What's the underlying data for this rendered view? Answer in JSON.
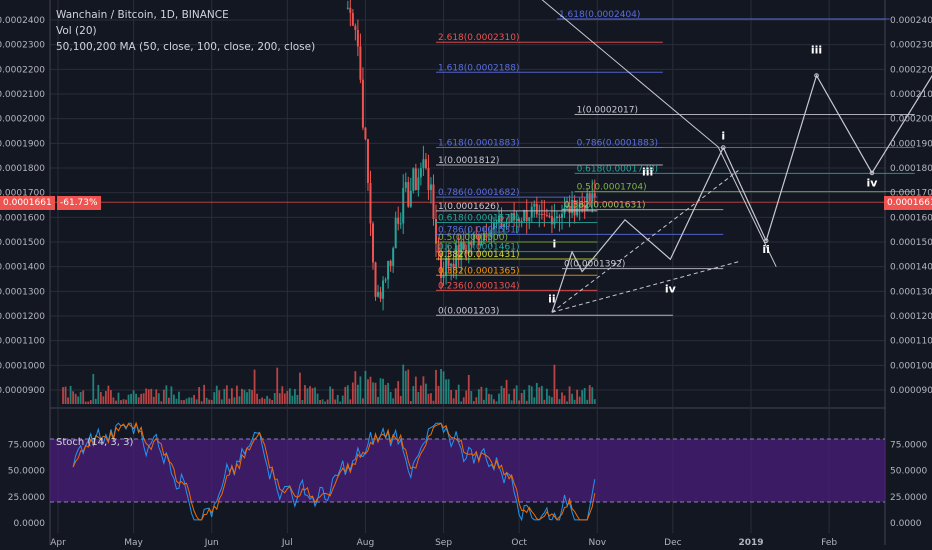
{
  "header": {
    "title": "Wanchain / Bitcoin, 1D, BINANCE",
    "vol": "Vol (20)",
    "ma": "50,100,200 MA (50, close, 100, close, 200, close)"
  },
  "price_badge_left": "0.0001661",
  "pct_badge": "-61.73%",
  "price_badge_right": "0.0001661",
  "stoch_label": "Stoch (14, 3, 3)",
  "colors": {
    "bg": "#131722",
    "up": "#26a69a",
    "down": "#ef5350",
    "grid": "#2a2e39",
    "fib_blue": "#5b6ee1",
    "fib_red": "#ef5350",
    "wave": "#c8c8d0",
    "stoch_fill": "#4a1e7a"
  },
  "chart_data": {
    "type": "candlestick",
    "title": "Wanchain / Bitcoin, 1D, BINANCE",
    "y_ticks": [
      "0.0002400",
      "0.0002300",
      "0.0002200",
      "0.0002100",
      "0.0002000",
      "0.0001900",
      "0.0001800",
      "0.0001700",
      "0.0001600",
      "0.0001500",
      "0.0001400",
      "0.0001300",
      "0.0001200",
      "0.0001100",
      "0.0001000",
      "0.0000900"
    ],
    "y_range": [
      8.3e-05,
      0.000246
    ],
    "x_ticks": [
      "Apr",
      "May",
      "Jun",
      "Jul",
      "Aug",
      "Sep",
      "Oct",
      "Nov",
      "Dec",
      "2019",
      "Feb"
    ],
    "fib_levels": [
      {
        "label": "1.618(0.0002404)",
        "value": 0.0002404,
        "color": "#5b6ee1"
      },
      {
        "label": "2.618(0.0002310)",
        "value": 0.000231,
        "color": "#ef5350"
      },
      {
        "label": "1.618(0.0002188)",
        "value": 0.0002188,
        "color": "#5b6ee1"
      },
      {
        "label": "1(0.0002017)",
        "value": 0.0002017,
        "color": "#c8c8d0"
      },
      {
        "label": "0.786(0.0001883)",
        "value": 0.0001883,
        "color": "#5b6ee1"
      },
      {
        "label": "1.618(0.0001883)",
        "value": 0.0001883,
        "color": "#5b6ee1"
      },
      {
        "label": "1(0.0001812)",
        "value": 0.0001812,
        "color": "#c8c8d0"
      },
      {
        "label": "0.618(0.0001778)",
        "value": 0.0001778,
        "color": "#26a69a"
      },
      {
        "label": "0.5(0.0001704)",
        "value": 0.0001704,
        "color": "#7cb342"
      },
      {
        "label": "0.786(0.0001682)",
        "value": 0.0001682,
        "color": "#5b6ee1"
      },
      {
        "label": "1(0.0001626)",
        "value": 0.0001626,
        "color": "#c8c8d0"
      },
      {
        "label": "0.382(0.0001631)",
        "value": 0.0001631,
        "color": "#9ccc65"
      },
      {
        "label": "0.618(0.0001579)",
        "value": 0.0001579,
        "color": "#26a69a"
      },
      {
        "label": "0.786(0.0001531)",
        "value": 0.0001531,
        "color": "#5b6ee1"
      },
      {
        "label": "0.5(0.0001500)",
        "value": 0.00015,
        "color": "#7cb342"
      },
      {
        "label": "0.618(0.0001461)",
        "value": 0.0001461,
        "color": "#26a69a"
      },
      {
        "label": "0.382(0.0001431)",
        "value": 0.0001431,
        "color": "#cddc39"
      },
      {
        "label": "0(0.0001392)",
        "value": 0.0001392,
        "color": "#c8c8d0"
      },
      {
        "label": "0.382(0.0001365)",
        "value": 0.0001365,
        "color": "#ff9800"
      },
      {
        "label": "0.236(0.0001304)",
        "value": 0.0001304,
        "color": "#ef5350"
      },
      {
        "label": "0(0.0001203)",
        "value": 0.0001203,
        "color": "#c8c8d0"
      }
    ],
    "wave_labels": [
      {
        "text": "i",
        "x_day": 197,
        "value": 0.0001478
      },
      {
        "text": "ii",
        "x_day": 196,
        "value": 0.0001255
      },
      {
        "text": "iii",
        "x_day": 234,
        "value": 0.000177
      },
      {
        "text": "iv",
        "x_day": 243,
        "value": 0.0001295
      },
      {
        "text": "i",
        "x_day": 264,
        "value": 0.0001915
      },
      {
        "text": "ii",
        "x_day": 281,
        "value": 0.0001455
      },
      {
        "text": "iii",
        "x_day": 301,
        "value": 0.0002265
      },
      {
        "text": "iv",
        "x_day": 323,
        "value": 0.0001725
      }
    ],
    "stoch_ticks": [
      "75.0000",
      "50.0000",
      "25.0000",
      "0.0000"
    ],
    "stoch_range": [
      0,
      100
    ]
  }
}
